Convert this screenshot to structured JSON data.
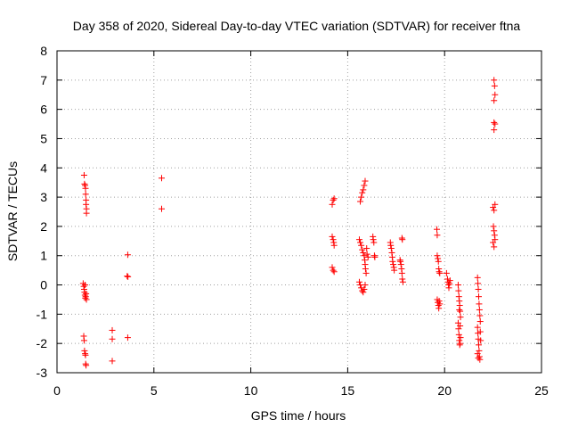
{
  "chart_data": {
    "type": "scatter",
    "title": "Day 358 of 2020, Sidereal Day-to-day VTEC variation (SDTVAR) for receiver ftna",
    "xlabel": "GPS time / hours",
    "ylabel": "SDTVAR / TECUs",
    "xlim": [
      0,
      25
    ],
    "ylim": [
      -3,
      8
    ],
    "xticks": [
      0,
      5,
      10,
      15,
      20,
      25
    ],
    "yticks": [
      -3,
      -2,
      -1,
      0,
      1,
      2,
      3,
      4,
      5,
      6,
      7,
      8
    ],
    "grid": true,
    "marker": "+",
    "color": "#ff0000",
    "series": [
      {
        "name": "SDTVAR",
        "points": [
          [
            1.4,
            3.75
          ],
          [
            1.42,
            3.45
          ],
          [
            1.45,
            3.4
          ],
          [
            1.47,
            3.3
          ],
          [
            1.48,
            3.1
          ],
          [
            1.5,
            2.9
          ],
          [
            1.5,
            2.75
          ],
          [
            1.52,
            2.6
          ],
          [
            1.52,
            2.45
          ],
          [
            1.35,
            0.05
          ],
          [
            1.38,
            -0.05
          ],
          [
            1.4,
            -0.15
          ],
          [
            1.42,
            -0.25
          ],
          [
            1.44,
            -0.35
          ],
          [
            1.46,
            -0.45
          ],
          [
            1.48,
            -0.4
          ],
          [
            1.5,
            -0.3
          ],
          [
            1.52,
            -0.5
          ],
          [
            1.45,
            0.0
          ],
          [
            1.38,
            -1.75
          ],
          [
            1.4,
            -1.9
          ],
          [
            1.42,
            -2.25
          ],
          [
            1.45,
            -2.35
          ],
          [
            1.47,
            -2.4
          ],
          [
            1.48,
            -2.7
          ],
          [
            1.5,
            -2.75
          ],
          [
            2.85,
            -1.55
          ],
          [
            2.85,
            -1.85
          ],
          [
            2.85,
            -2.6
          ],
          [
            3.65,
            1.03
          ],
          [
            3.62,
            0.3
          ],
          [
            3.66,
            0.28
          ],
          [
            3.65,
            -1.8
          ],
          [
            5.4,
            3.65
          ],
          [
            5.4,
            2.6
          ],
          [
            14.2,
            2.75
          ],
          [
            14.25,
            2.9
          ],
          [
            14.3,
            2.95
          ],
          [
            14.2,
            1.65
          ],
          [
            14.25,
            1.55
          ],
          [
            14.28,
            1.45
          ],
          [
            14.3,
            1.35
          ],
          [
            14.2,
            0.6
          ],
          [
            14.25,
            0.5
          ],
          [
            14.3,
            0.45
          ],
          [
            15.65,
            2.85
          ],
          [
            15.7,
            3.0
          ],
          [
            15.75,
            3.15
          ],
          [
            15.8,
            3.25
          ],
          [
            15.85,
            3.4
          ],
          [
            15.9,
            3.55
          ],
          [
            15.6,
            1.55
          ],
          [
            15.65,
            1.45
          ],
          [
            15.7,
            1.35
          ],
          [
            15.75,
            1.2
          ],
          [
            15.8,
            1.1
          ],
          [
            15.85,
            1.0
          ],
          [
            15.88,
            0.85
          ],
          [
            15.9,
            0.7
          ],
          [
            15.92,
            0.55
          ],
          [
            15.95,
            0.4
          ],
          [
            15.98,
            1.25
          ],
          [
            16.0,
            1.05
          ],
          [
            16.05,
            0.95
          ],
          [
            15.6,
            0.1
          ],
          [
            15.65,
            0.0
          ],
          [
            15.7,
            -0.1
          ],
          [
            15.75,
            -0.2
          ],
          [
            15.8,
            -0.25
          ],
          [
            15.85,
            -0.15
          ],
          [
            15.9,
            0.0
          ],
          [
            16.3,
            1.65
          ],
          [
            16.32,
            1.55
          ],
          [
            16.35,
            1.45
          ],
          [
            16.38,
            1.0
          ],
          [
            16.4,
            0.95
          ],
          [
            17.2,
            1.45
          ],
          [
            17.22,
            1.35
          ],
          [
            17.25,
            1.25
          ],
          [
            17.28,
            1.1
          ],
          [
            17.3,
            0.95
          ],
          [
            17.32,
            0.8
          ],
          [
            17.35,
            0.7
          ],
          [
            17.38,
            0.6
          ],
          [
            17.4,
            0.5
          ],
          [
            17.7,
            0.85
          ],
          [
            17.72,
            0.8
          ],
          [
            17.75,
            0.7
          ],
          [
            17.78,
            0.55
          ],
          [
            17.8,
            0.4
          ],
          [
            17.82,
            0.2
          ],
          [
            17.85,
            0.1
          ],
          [
            17.8,
            1.6
          ],
          [
            17.82,
            1.55
          ],
          [
            19.6,
            1.9
          ],
          [
            19.62,
            1.7
          ],
          [
            19.62,
            1.0
          ],
          [
            19.65,
            0.9
          ],
          [
            19.68,
            0.8
          ],
          [
            19.7,
            0.55
          ],
          [
            19.72,
            0.45
          ],
          [
            19.75,
            0.4
          ],
          [
            19.62,
            -0.5
          ],
          [
            19.65,
            -0.6
          ],
          [
            19.68,
            -0.7
          ],
          [
            19.7,
            -0.8
          ],
          [
            19.72,
            -0.55
          ],
          [
            19.75,
            -0.65
          ],
          [
            20.1,
            0.4
          ],
          [
            20.15,
            0.2
          ],
          [
            20.18,
            0.1
          ],
          [
            20.2,
            0.0
          ],
          [
            20.22,
            -0.1
          ],
          [
            20.25,
            0.05
          ],
          [
            20.28,
            0.15
          ],
          [
            20.7,
            0.0
          ],
          [
            20.72,
            -0.2
          ],
          [
            20.74,
            -0.4
          ],
          [
            20.76,
            -0.55
          ],
          [
            20.78,
            -0.7
          ],
          [
            20.8,
            -0.9
          ],
          [
            20.82,
            -1.1
          ],
          [
            20.7,
            -1.3
          ],
          [
            20.72,
            -1.5
          ],
          [
            20.74,
            -1.7
          ],
          [
            20.76,
            -1.9
          ],
          [
            20.78,
            -2.05
          ],
          [
            20.8,
            -2.0
          ],
          [
            20.82,
            -1.8
          ],
          [
            20.76,
            -0.85
          ],
          [
            20.8,
            -1.4
          ],
          [
            21.7,
            0.25
          ],
          [
            21.72,
            0.05
          ],
          [
            21.74,
            -0.15
          ],
          [
            21.76,
            -0.4
          ],
          [
            21.78,
            -0.65
          ],
          [
            21.8,
            -0.85
          ],
          [
            21.82,
            -1.05
          ],
          [
            21.84,
            -1.25
          ],
          [
            21.7,
            -1.45
          ],
          [
            21.72,
            -1.65
          ],
          [
            21.74,
            -1.85
          ],
          [
            21.76,
            -2.05
          ],
          [
            21.78,
            -2.25
          ],
          [
            21.8,
            -2.45
          ],
          [
            21.82,
            -2.55
          ],
          [
            21.84,
            -1.6
          ],
          [
            21.86,
            -1.9
          ],
          [
            21.7,
            -2.35
          ],
          [
            21.74,
            -2.5
          ],
          [
            22.55,
            7.0
          ],
          [
            22.58,
            6.8
          ],
          [
            22.6,
            6.5
          ],
          [
            22.55,
            6.3
          ],
          [
            22.55,
            5.55
          ],
          [
            22.6,
            5.5
          ],
          [
            22.55,
            5.3
          ],
          [
            22.5,
            2.65
          ],
          [
            22.55,
            2.55
          ],
          [
            22.6,
            2.75
          ],
          [
            22.52,
            2.0
          ],
          [
            22.55,
            1.85
          ],
          [
            22.58,
            1.7
          ],
          [
            22.6,
            1.55
          ],
          [
            22.5,
            1.45
          ],
          [
            22.55,
            1.3
          ]
        ]
      }
    ]
  }
}
